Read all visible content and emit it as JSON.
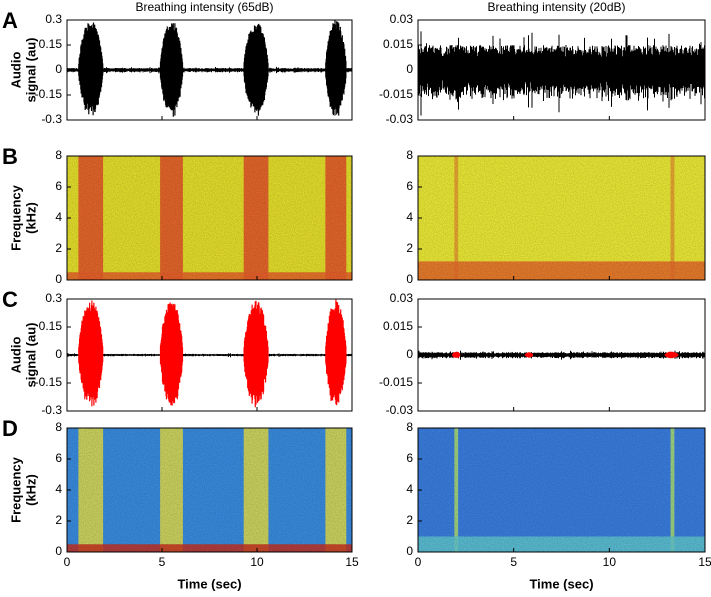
{
  "chart_data": [
    {
      "type": "waveform",
      "panel": "A",
      "title": "Breathing intensity (65dB)",
      "ylabel": [
        "Audio",
        "signal (au)"
      ],
      "xlim": [
        0,
        15
      ],
      "xticks": [
        0,
        5,
        10,
        15
      ],
      "ylim": [
        -0.3,
        0.3
      ],
      "yticks": [
        0.3,
        0.15,
        0,
        -0.15,
        -0.3
      ],
      "color": "#000000",
      "burst_color": "#000000",
      "noise": 0.012,
      "bursts": [
        [
          0.6,
          1.9,
          0.3
        ],
        [
          4.9,
          6.1,
          0.3
        ],
        [
          9.3,
          10.6,
          0.3
        ],
        [
          13.6,
          14.7,
          0.3
        ]
      ]
    },
    {
      "type": "waveform",
      "title": "Breathing intensity (20dB)",
      "xlim": [
        0,
        15
      ],
      "xticks": [
        0,
        5,
        10,
        15
      ],
      "ylim": [
        -0.03,
        0.03
      ],
      "yticks": [
        0.03,
        0.015,
        0,
        -0.015,
        -0.03
      ],
      "color": "#000000",
      "burst_color": "#000000",
      "noise": 0.015,
      "bursts": []
    },
    {
      "type": "spectrogram",
      "panel": "B",
      "ylabel": [
        "Frequency",
        "(kHz)"
      ],
      "xlim": [
        0,
        15
      ],
      "xticks": [
        0,
        5,
        10,
        15
      ],
      "ylim": [
        0,
        8
      ],
      "yticks": [
        8,
        6,
        4,
        2,
        0
      ],
      "background": "#e6e02c",
      "band_color": "#e4502a",
      "floor_color": "#e8602a",
      "floor": 0.5,
      "bursts": [
        [
          0.6,
          1.9
        ],
        [
          4.9,
          6.1
        ],
        [
          9.3,
          10.6
        ],
        [
          13.6,
          14.7
        ]
      ]
    },
    {
      "type": "spectrogram",
      "xlim": [
        0,
        15
      ],
      "xticks": [
        0,
        5,
        10,
        15
      ],
      "ylim": [
        0,
        8
      ],
      "yticks": [
        8,
        6,
        4,
        2,
        0
      ],
      "background": "#ecea36",
      "band_color": "#e89a30",
      "floor_color": "#e8682a",
      "floor": 1.2,
      "bursts": [
        [
          1.9,
          2.1
        ],
        [
          13.2,
          13.4
        ]
      ]
    },
    {
      "type": "waveform",
      "panel": "C",
      "ylabel": [
        "Audio",
        "signal (au)"
      ],
      "xlim": [
        0,
        15
      ],
      "xticks": [
        0,
        5,
        10,
        15
      ],
      "ylim": [
        -0.3,
        0.3
      ],
      "yticks": [
        0.3,
        0.15,
        0,
        -0.15,
        -0.3
      ],
      "color": "#000000",
      "burst_color": "#ff0000",
      "noise": 0.006,
      "bursts": [
        [
          0.6,
          1.9,
          0.3
        ],
        [
          4.9,
          6.1,
          0.3
        ],
        [
          9.3,
          10.6,
          0.3
        ],
        [
          13.6,
          14.7,
          0.3
        ]
      ]
    },
    {
      "type": "waveform",
      "xlim": [
        0,
        15
      ],
      "xticks": [
        0,
        5,
        10,
        15
      ],
      "ylim": [
        -0.03,
        0.03
      ],
      "yticks": [
        0.03,
        0.015,
        0,
        -0.015,
        -0.03
      ],
      "color": "#000000",
      "burst_color": "#ff0000",
      "noise": 0.0015,
      "bursts": [
        [
          1.8,
          2.2,
          0.002
        ],
        [
          5.6,
          6.0,
          0.0015
        ],
        [
          12.9,
          13.6,
          0.002
        ]
      ]
    },
    {
      "type": "spectrogram",
      "panel": "D",
      "ylabel": [
        "Frequency",
        "(kHz)"
      ],
      "xlabel": "Time (sec)",
      "xlim": [
        0,
        15
      ],
      "xticks": [
        0,
        5,
        10,
        15
      ],
      "ylim": [
        0,
        8
      ],
      "yticks": [
        8,
        6,
        4,
        2,
        0
      ],
      "background": "#3a8ce0",
      "band_color": "#e8e048",
      "floor_color": "#c83020",
      "floor": 0.5,
      "bursts": [
        [
          0.6,
          1.9
        ],
        [
          4.9,
          6.1
        ],
        [
          9.3,
          10.6
        ],
        [
          13.6,
          14.7
        ]
      ]
    },
    {
      "type": "spectrogram",
      "xlabel": "Time (sec)",
      "xlim": [
        0,
        15
      ],
      "xticks": [
        0,
        5,
        10,
        15
      ],
      "ylim": [
        0,
        8
      ],
      "yticks": [
        8,
        6,
        4,
        2,
        0
      ],
      "background": "#3a7ee0",
      "band_color": "#b0e070",
      "floor_color": "#60c8d0",
      "floor": 1,
      "bursts": [
        [
          1.9,
          2.1
        ],
        [
          13.2,
          13.4
        ]
      ]
    }
  ]
}
